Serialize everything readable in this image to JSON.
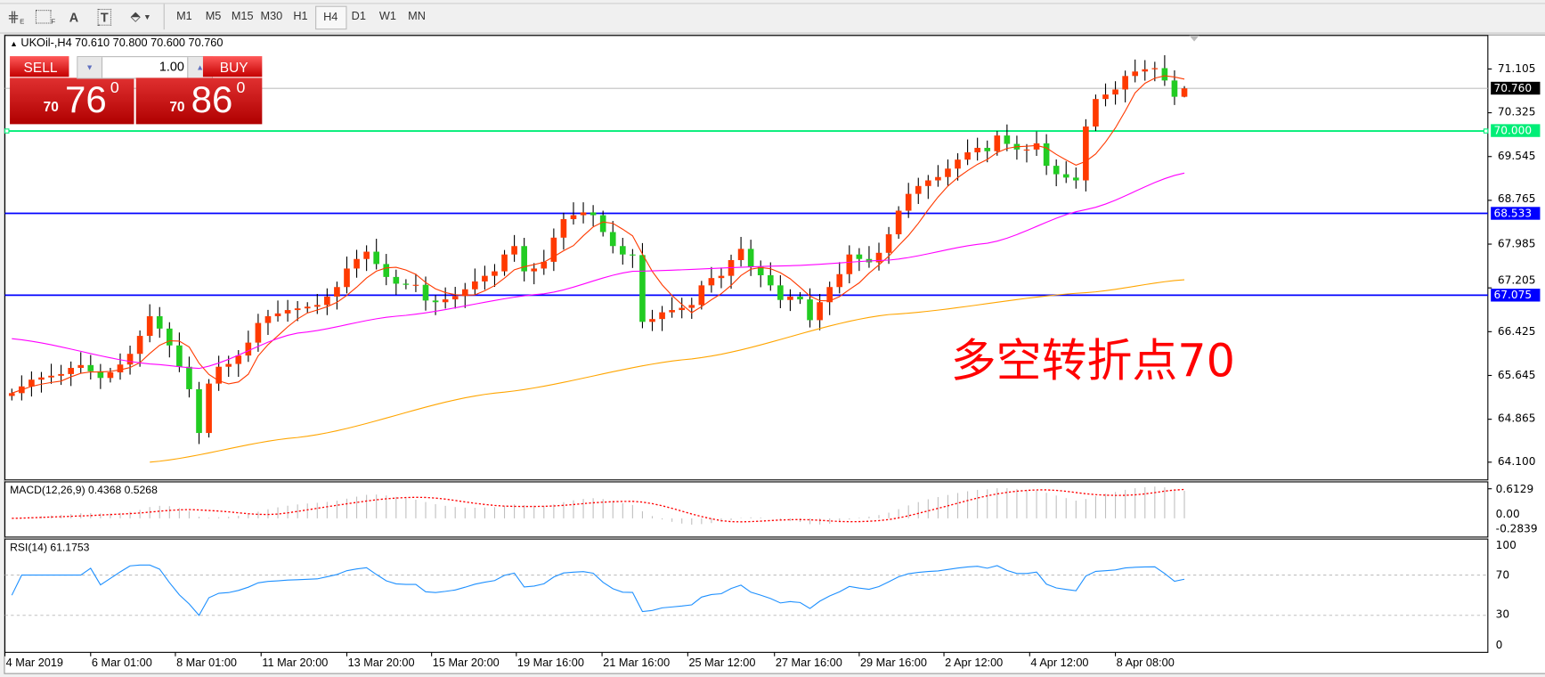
{
  "toolbar": {
    "tools": [
      {
        "name": "indicators",
        "icon": "indicators-icon",
        "sub": "E"
      },
      {
        "name": "periods",
        "icon": "grid-icon",
        "sub": "F"
      },
      {
        "name": "text",
        "label": "A"
      },
      {
        "name": "text-label",
        "label": "T"
      },
      {
        "name": "arrows",
        "icon": "arrows-dropdown-icon"
      }
    ],
    "timeframes": [
      "M1",
      "M5",
      "M15",
      "M30",
      "H1",
      "H4",
      "D1",
      "W1",
      "MN"
    ],
    "active_timeframe": "H4"
  },
  "chart": {
    "header": "UKOil-,H4  70.610 70.800 70.600 70.760",
    "trade_panel": {
      "sell_label": "SELL",
      "buy_label": "BUY",
      "lot": "1.00",
      "sell_big": "70",
      "sell_price": "76",
      "sell_sup": "0",
      "buy_big": "70",
      "buy_price": "86",
      "buy_sup": "0"
    },
    "annotation": "多空转折点70",
    "price_axis": [
      "71.105",
      "70.325",
      "69.545",
      "68.765",
      "67.985",
      "67.205",
      "66.425",
      "65.645",
      "64.865",
      "64.100"
    ],
    "price_tags": [
      {
        "label": "70.760",
        "value": 70.76,
        "color": "#000000",
        "line": "#c0c0c0"
      },
      {
        "label": "70.000",
        "value": 70.0,
        "color": "#00ee77",
        "line": "#00ee77"
      },
      {
        "label": "68.533",
        "value": 68.533,
        "color": "#0000ff",
        "line": "#0000ff"
      },
      {
        "label": "67.075",
        "value": 67.075,
        "color": "#0000ff",
        "line": "#0000ff"
      }
    ],
    "dates": [
      "4 Mar 2019",
      "6 Mar 01:00",
      "8 Mar 01:00",
      "11 Mar 20:00",
      "13 Mar 20:00",
      "15 Mar 20:00",
      "19 Mar 16:00",
      "21 Mar 16:00",
      "25 Mar 12:00",
      "27 Mar 16:00",
      "29 Mar 16:00",
      "2 Apr 12:00",
      "4 Apr 12:00",
      "8 Apr 08:00"
    ],
    "colors": {
      "up": "#ff3a00",
      "down": "#22cc22",
      "ma_fast": "#ff3a00",
      "ma_mid": "#ff00ff",
      "ma_slow": "#ffa500",
      "macd_hist": "#c0c0c0",
      "macd_signal": "#ff0000",
      "rsi": "#1e90ff"
    }
  },
  "macd": {
    "label": "MACD(12,26,9) 0.4368 0.5268",
    "axis": [
      "0.6129",
      "0.00",
      "-0.2839"
    ]
  },
  "rsi": {
    "label": "RSI(14) 61.1753",
    "axis": [
      "100",
      "70",
      "30",
      "0"
    ]
  },
  "chart_data": {
    "type": "candlestick",
    "symbol": "UKOil-",
    "timeframe": "H4",
    "last_ohlc": {
      "open": 70.61,
      "high": 70.8,
      "low": 70.6,
      "close": 70.76
    },
    "ylim": [
      64.1,
      71.105
    ],
    "close": [
      65.33,
      65.45,
      65.57,
      65.61,
      65.64,
      65.67,
      65.78,
      65.83,
      65.72,
      65.6,
      65.7,
      65.84,
      66.03,
      66.35,
      66.7,
      66.48,
      66.18,
      65.8,
      65.4,
      64.62,
      65.5,
      65.8,
      65.85,
      66.0,
      66.23,
      66.58,
      66.7,
      66.75,
      66.81,
      66.84,
      66.87,
      66.9,
      67.05,
      67.22,
      67.55,
      67.72,
      67.85,
      67.63,
      67.4,
      67.28,
      67.26,
      67.26,
      66.98,
      66.95,
      67.0,
      67.06,
      67.18,
      67.32,
      67.42,
      67.5,
      67.8,
      67.95,
      67.5,
      67.55,
      67.67,
      68.1,
      68.43,
      68.5,
      68.55,
      68.5,
      68.2,
      67.95,
      67.8,
      67.79,
      66.6,
      66.65,
      66.77,
      66.81,
      66.85,
      66.9,
      67.25,
      67.38,
      67.42,
      67.7,
      67.9,
      67.58,
      67.43,
      67.25,
      66.99,
      67.05,
      67.0,
      66.63,
      66.95,
      67.22,
      67.45,
      67.8,
      67.72,
      67.66,
      67.83,
      68.16,
      68.58,
      68.88,
      69.02,
      69.12,
      69.18,
      69.33,
      69.49,
      69.62,
      69.7,
      69.64,
      69.92,
      69.77,
      69.67,
      69.67,
      69.78,
      69.38,
      69.23,
      69.17,
      69.12,
      70.08,
      70.57,
      70.65,
      70.74,
      70.98,
      71.06,
      71.1,
      71.12,
      70.9,
      70.61,
      70.76
    ],
    "ma_mid_points": [
      [
        0,
        66.3
      ],
      [
        14,
        65.85
      ],
      [
        19,
        65.77
      ],
      [
        29,
        66.4
      ],
      [
        39,
        66.7
      ],
      [
        54,
        67.1
      ],
      [
        63,
        67.5
      ],
      [
        79,
        67.6
      ],
      [
        89,
        67.7
      ],
      [
        99,
        68.0
      ],
      [
        109,
        68.6
      ],
      [
        119,
        69.25
      ]
    ],
    "ma_slow_points": [
      [
        14,
        64.1
      ],
      [
        29,
        64.54
      ],
      [
        49,
        65.33
      ],
      [
        69,
        65.94
      ],
      [
        89,
        66.73
      ],
      [
        109,
        67.12
      ],
      [
        119,
        67.35
      ]
    ],
    "rsi_levels": [
      70,
      30
    ]
  }
}
